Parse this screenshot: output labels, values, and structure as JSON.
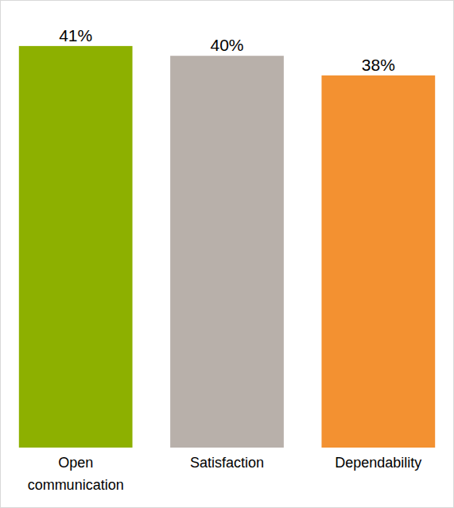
{
  "chart_data": {
    "type": "bar",
    "categories": [
      "Open communication",
      "Satisfaction",
      "Dependability"
    ],
    "values": [
      41,
      40,
      38
    ],
    "value_labels": [
      "41%",
      "40%",
      "38%"
    ],
    "colors": [
      "#8db000",
      "#b8b0aa",
      "#f39131"
    ],
    "ylim": [
      0,
      45
    ],
    "tick_labels": false,
    "data_labels": true,
    "grid": false
  }
}
